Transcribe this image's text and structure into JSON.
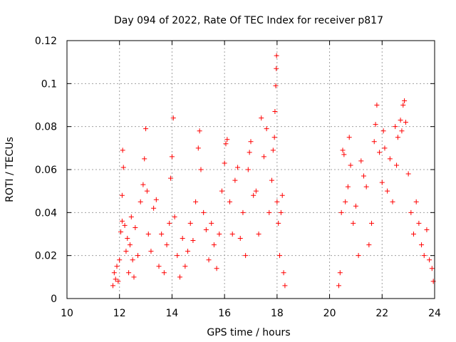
{
  "chart_data": {
    "type": "scatter",
    "title": "Day 094 of 2022, Rate Of TEC Index for receiver p817",
    "xlabel": "GPS time / hours",
    "ylabel": "ROTI / TECUs",
    "xlim": [
      10,
      24
    ],
    "ylim": [
      0,
      0.12
    ],
    "x_ticks": [
      10,
      12,
      14,
      16,
      18,
      20,
      22,
      24
    ],
    "x_tick_labels": [
      "10",
      "12",
      "14",
      "16",
      "18",
      "20",
      "22",
      "24"
    ],
    "y_ticks": [
      0,
      0.02,
      0.04,
      0.06,
      0.08,
      0.1,
      0.12
    ],
    "y_tick_labels": [
      "0",
      "0.02",
      "0.04",
      "0.06",
      "0.08",
      "0.1",
      "0.12"
    ],
    "grid": true,
    "marker": "plus",
    "marker_color": "#ff0000",
    "series": [
      {
        "points": [
          [
            11.75,
            0.006
          ],
          [
            11.8,
            0.012
          ],
          [
            11.85,
            0.009
          ],
          [
            11.9,
            0.015
          ],
          [
            11.95,
            0.008
          ],
          [
            12.0,
            0.018
          ],
          [
            12.05,
            0.031
          ],
          [
            12.1,
            0.036
          ],
          [
            12.1,
            0.048
          ],
          [
            12.12,
            0.069
          ],
          [
            12.15,
            0.061
          ],
          [
            12.2,
            0.034
          ],
          [
            12.25,
            0.022
          ],
          [
            12.3,
            0.028
          ],
          [
            12.35,
            0.012
          ],
          [
            12.4,
            0.025
          ],
          [
            12.45,
            0.038
          ],
          [
            12.5,
            0.018
          ],
          [
            12.55,
            0.01
          ],
          [
            12.6,
            0.033
          ],
          [
            12.7,
            0.02
          ],
          [
            12.8,
            0.045
          ],
          [
            12.9,
            0.053
          ],
          [
            12.95,
            0.065
          ],
          [
            13.0,
            0.079
          ],
          [
            13.05,
            0.05
          ],
          [
            13.1,
            0.03
          ],
          [
            13.2,
            0.022
          ],
          [
            13.3,
            0.042
          ],
          [
            13.4,
            0.046
          ],
          [
            13.5,
            0.015
          ],
          [
            13.6,
            0.03
          ],
          [
            13.7,
            0.012
          ],
          [
            13.8,
            0.025
          ],
          [
            13.9,
            0.035
          ],
          [
            13.95,
            0.056
          ],
          [
            14.0,
            0.066
          ],
          [
            14.05,
            0.084
          ],
          [
            14.1,
            0.038
          ],
          [
            14.2,
            0.02
          ],
          [
            14.3,
            0.01
          ],
          [
            14.4,
            0.028
          ],
          [
            14.5,
            0.015
          ],
          [
            14.6,
            0.022
          ],
          [
            14.7,
            0.035
          ],
          [
            14.8,
            0.027
          ],
          [
            14.9,
            0.045
          ],
          [
            15.0,
            0.07
          ],
          [
            15.05,
            0.078
          ],
          [
            15.1,
            0.06
          ],
          [
            15.2,
            0.04
          ],
          [
            15.3,
            0.032
          ],
          [
            15.4,
            0.018
          ],
          [
            15.5,
            0.035
          ],
          [
            15.6,
            0.025
          ],
          [
            15.7,
            0.014
          ],
          [
            15.8,
            0.03
          ],
          [
            15.9,
            0.05
          ],
          [
            16.0,
            0.063
          ],
          [
            16.05,
            0.072
          ],
          [
            16.1,
            0.074
          ],
          [
            16.2,
            0.045
          ],
          [
            16.3,
            0.03
          ],
          [
            16.4,
            0.055
          ],
          [
            16.5,
            0.061
          ],
          [
            16.6,
            0.028
          ],
          [
            16.7,
            0.04
          ],
          [
            16.8,
            0.02
          ],
          [
            16.9,
            0.06
          ],
          [
            16.95,
            0.068
          ],
          [
            17.0,
            0.073
          ],
          [
            17.1,
            0.048
          ],
          [
            17.2,
            0.05
          ],
          [
            17.3,
            0.03
          ],
          [
            17.4,
            0.084
          ],
          [
            17.5,
            0.066
          ],
          [
            17.6,
            0.079
          ],
          [
            17.7,
            0.04
          ],
          [
            17.8,
            0.055
          ],
          [
            17.85,
            0.069
          ],
          [
            17.9,
            0.075
          ],
          [
            17.92,
            0.087
          ],
          [
            17.95,
            0.099
          ],
          [
            17.97,
            0.107
          ],
          [
            17.98,
            0.113
          ],
          [
            18.0,
            0.045
          ],
          [
            18.05,
            0.035
          ],
          [
            18.1,
            0.02
          ],
          [
            18.15,
            0.04
          ],
          [
            18.2,
            0.048
          ],
          [
            18.25,
            0.012
          ],
          [
            18.3,
            0.006
          ],
          [
            20.35,
            0.006
          ],
          [
            20.4,
            0.012
          ],
          [
            20.45,
            0.04
          ],
          [
            20.5,
            0.069
          ],
          [
            20.55,
            0.067
          ],
          [
            20.6,
            0.045
          ],
          [
            20.7,
            0.052
          ],
          [
            20.75,
            0.075
          ],
          [
            20.8,
            0.062
          ],
          [
            20.9,
            0.035
          ],
          [
            21.0,
            0.043
          ],
          [
            21.1,
            0.02
          ],
          [
            21.2,
            0.064
          ],
          [
            21.3,
            0.057
          ],
          [
            21.4,
            0.052
          ],
          [
            21.5,
            0.025
          ],
          [
            21.6,
            0.035
          ],
          [
            21.7,
            0.073
          ],
          [
            21.75,
            0.081
          ],
          [
            21.8,
            0.09
          ],
          [
            21.9,
            0.068
          ],
          [
            22.0,
            0.054
          ],
          [
            22.05,
            0.078
          ],
          [
            22.1,
            0.07
          ],
          [
            22.2,
            0.05
          ],
          [
            22.3,
            0.065
          ],
          [
            22.4,
            0.045
          ],
          [
            22.5,
            0.08
          ],
          [
            22.55,
            0.062
          ],
          [
            22.6,
            0.075
          ],
          [
            22.7,
            0.083
          ],
          [
            22.75,
            0.078
          ],
          [
            22.8,
            0.09
          ],
          [
            22.85,
            0.092
          ],
          [
            22.9,
            0.082
          ],
          [
            23.0,
            0.058
          ],
          [
            23.1,
            0.04
          ],
          [
            23.2,
            0.03
          ],
          [
            23.3,
            0.045
          ],
          [
            23.4,
            0.035
          ],
          [
            23.5,
            0.025
          ],
          [
            23.6,
            0.02
          ],
          [
            23.7,
            0.032
          ],
          [
            23.8,
            0.018
          ],
          [
            23.9,
            0.014
          ],
          [
            23.95,
            0.008
          ]
        ]
      }
    ]
  }
}
